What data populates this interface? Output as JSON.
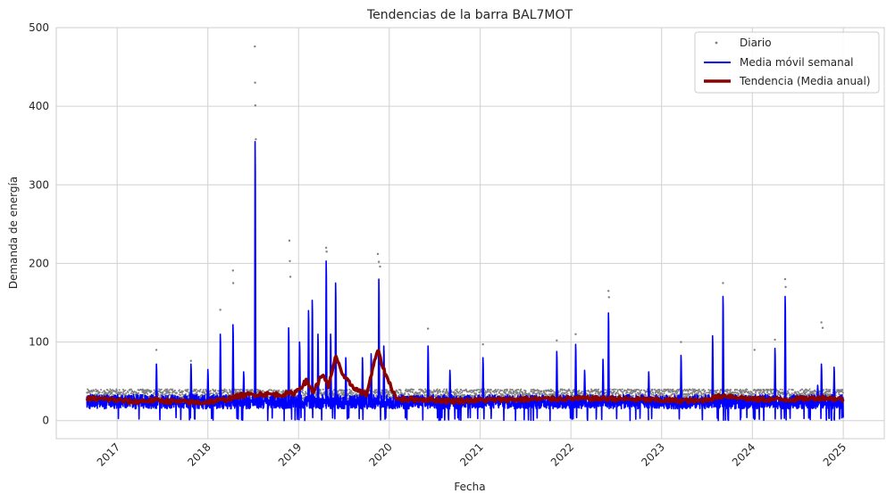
{
  "chart_data": {
    "type": "line",
    "title": "Tendencias de la barra BAL7MOT",
    "xlabel": "Fecha",
    "ylabel": "Demanda de energía",
    "xlim": [
      "2016-05-01",
      "2025-06-15"
    ],
    "ylim": [
      -23,
      500
    ],
    "x_ticks": [
      "2017",
      "2018",
      "2019",
      "2020",
      "2021",
      "2022",
      "2023",
      "2024",
      "2025"
    ],
    "y_ticks": [
      0,
      100,
      200,
      300,
      400,
      500
    ],
    "grid": true,
    "legend_position": "top-right",
    "colors": {
      "daily": "#808080",
      "weekly": "#0000ff",
      "trend": "#8b0000",
      "grid": "#d0d0d0",
      "frame": "#cccccc"
    },
    "series": [
      {
        "name": "Diario",
        "kind": "points",
        "baseline_band": [
          27,
          40
        ],
        "outliers": [
          {
            "x": "2017-06-08",
            "y": 90
          },
          {
            "x": "2017-10-25",
            "y": 76
          },
          {
            "x": "2018-02-20",
            "y": 141
          },
          {
            "x": "2018-04-12",
            "y": 191
          },
          {
            "x": "2018-04-13",
            "y": 175
          },
          {
            "x": "2018-07-09",
            "y": 476
          },
          {
            "x": "2018-07-10",
            "y": 430
          },
          {
            "x": "2018-07-11",
            "y": 401
          },
          {
            "x": "2018-07-13",
            "y": 358
          },
          {
            "x": "2018-11-25",
            "y": 229
          },
          {
            "x": "2018-11-27",
            "y": 203
          },
          {
            "x": "2018-11-29",
            "y": 183
          },
          {
            "x": "2019-04-22",
            "y": 220
          },
          {
            "x": "2019-04-24",
            "y": 215
          },
          {
            "x": "2019-11-16",
            "y": 212
          },
          {
            "x": "2019-11-20",
            "y": 202
          },
          {
            "x": "2019-11-25",
            "y": 196
          },
          {
            "x": "2020-06-05",
            "y": 117
          },
          {
            "x": "2021-01-12",
            "y": 97
          },
          {
            "x": "2021-11-05",
            "y": 102
          },
          {
            "x": "2022-01-20",
            "y": 110
          },
          {
            "x": "2022-06-01",
            "y": 165
          },
          {
            "x": "2022-06-03",
            "y": 157
          },
          {
            "x": "2023-03-20",
            "y": 100
          },
          {
            "x": "2023-09-05",
            "y": 175
          },
          {
            "x": "2024-01-10",
            "y": 90
          },
          {
            "x": "2024-04-01",
            "y": 103
          },
          {
            "x": "2024-05-12",
            "y": 180
          },
          {
            "x": "2024-05-14",
            "y": 170
          },
          {
            "x": "2024-10-05",
            "y": 125
          },
          {
            "x": "2024-10-10",
            "y": 118
          }
        ]
      },
      {
        "name": "Media móvil semanal",
        "kind": "line",
        "baseline_band": [
          15,
          33
        ],
        "spikes": [
          {
            "x": "2017-06-08",
            "y": 72
          },
          {
            "x": "2017-10-25",
            "y": 72
          },
          {
            "x": "2018-01-01",
            "y": 65
          },
          {
            "x": "2018-02-20",
            "y": 110
          },
          {
            "x": "2018-04-12",
            "y": 122
          },
          {
            "x": "2018-05-25",
            "y": 62
          },
          {
            "x": "2018-07-10",
            "y": 355
          },
          {
            "x": "2018-11-22",
            "y": 118
          },
          {
            "x": "2019-01-05",
            "y": 100
          },
          {
            "x": "2019-02-10",
            "y": 140
          },
          {
            "x": "2019-02-25",
            "y": 153
          },
          {
            "x": "2019-03-20",
            "y": 110
          },
          {
            "x": "2019-04-22",
            "y": 203
          },
          {
            "x": "2019-05-10",
            "y": 110
          },
          {
            "x": "2019-05-30",
            "y": 175
          },
          {
            "x": "2019-07-10",
            "y": 80
          },
          {
            "x": "2019-09-15",
            "y": 80
          },
          {
            "x": "2019-10-20",
            "y": 85
          },
          {
            "x": "2019-11-20",
            "y": 180
          },
          {
            "x": "2019-12-10",
            "y": 95
          },
          {
            "x": "2020-06-05",
            "y": 95
          },
          {
            "x": "2020-09-01",
            "y": 64
          },
          {
            "x": "2021-01-12",
            "y": 80
          },
          {
            "x": "2021-11-05",
            "y": 88
          },
          {
            "x": "2022-01-20",
            "y": 97
          },
          {
            "x": "2022-02-25",
            "y": 64
          },
          {
            "x": "2022-05-10",
            "y": 78
          },
          {
            "x": "2022-06-01",
            "y": 137
          },
          {
            "x": "2022-11-10",
            "y": 62
          },
          {
            "x": "2023-03-20",
            "y": 83
          },
          {
            "x": "2023-07-25",
            "y": 108
          },
          {
            "x": "2023-09-05",
            "y": 158
          },
          {
            "x": "2024-04-01",
            "y": 92
          },
          {
            "x": "2024-05-12",
            "y": 158
          },
          {
            "x": "2024-09-20",
            "y": 45
          },
          {
            "x": "2024-10-05",
            "y": 72
          },
          {
            "x": "2024-11-25",
            "y": 68
          }
        ]
      },
      {
        "name": "Tendencia (Media anual)",
        "kind": "line",
        "points": [
          {
            "x": "2016-09-01",
            "y": 28
          },
          {
            "x": "2016-12-01",
            "y": 27
          },
          {
            "x": "2017-03-01",
            "y": 24
          },
          {
            "x": "2017-06-01",
            "y": 26
          },
          {
            "x": "2017-09-01",
            "y": 24
          },
          {
            "x": "2017-12-01",
            "y": 23
          },
          {
            "x": "2018-03-01",
            "y": 26
          },
          {
            "x": "2018-05-15",
            "y": 32
          },
          {
            "x": "2018-08-01",
            "y": 34
          },
          {
            "x": "2018-10-15",
            "y": 33
          },
          {
            "x": "2018-12-15",
            "y": 35
          },
          {
            "x": "2019-02-01",
            "y": 50
          },
          {
            "x": "2019-03-01",
            "y": 37
          },
          {
            "x": "2019-04-10",
            "y": 60
          },
          {
            "x": "2019-05-01",
            "y": 42
          },
          {
            "x": "2019-06-01",
            "y": 83
          },
          {
            "x": "2019-07-01",
            "y": 55
          },
          {
            "x": "2019-08-20",
            "y": 40
          },
          {
            "x": "2019-10-01",
            "y": 33
          },
          {
            "x": "2019-11-15",
            "y": 90
          },
          {
            "x": "2019-12-15",
            "y": 60
          },
          {
            "x": "2020-02-01",
            "y": 27
          },
          {
            "x": "2020-06-01",
            "y": 27
          },
          {
            "x": "2020-09-01",
            "y": 25
          },
          {
            "x": "2021-01-01",
            "y": 26
          },
          {
            "x": "2021-06-01",
            "y": 27
          },
          {
            "x": "2022-01-01",
            "y": 28
          },
          {
            "x": "2022-06-01",
            "y": 28
          },
          {
            "x": "2023-01-01",
            "y": 26
          },
          {
            "x": "2023-06-01",
            "y": 25
          },
          {
            "x": "2023-09-15",
            "y": 32
          },
          {
            "x": "2024-01-01",
            "y": 27
          },
          {
            "x": "2024-06-01",
            "y": 27
          },
          {
            "x": "2024-10-15",
            "y": 29
          },
          {
            "x": "2025-01-01",
            "y": 27
          }
        ]
      }
    ]
  }
}
